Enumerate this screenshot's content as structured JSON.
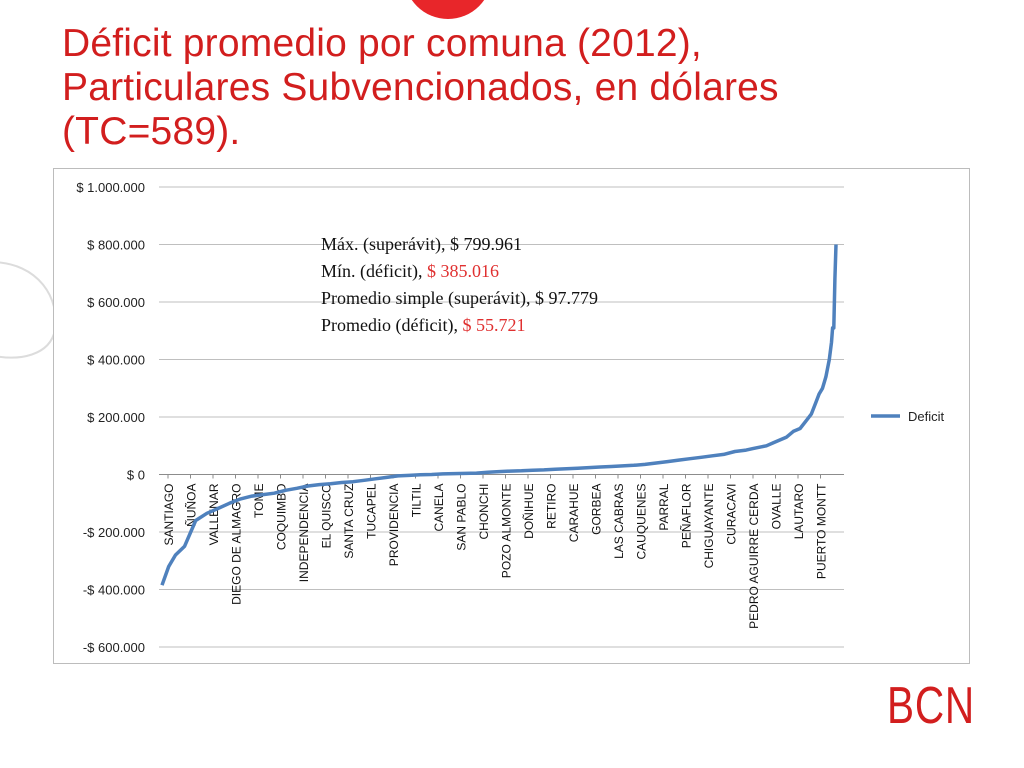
{
  "title_lines": [
    "Déficit promedio por comuna (2012),",
    "Particulares Subvencionados, en dólares",
    "(TC=589)."
  ],
  "logo_text": "BCN",
  "colors": {
    "title": "#d21e1e",
    "line": "#4f81bd",
    "annotation_red": "#e03030",
    "grid": "#bfbfbf"
  },
  "annotations": [
    {
      "label": "Máx. (superávit), ",
      "value": "$ 799.961",
      "value_color": "normal"
    },
    {
      "label": "Mín. (déficit), ",
      "value": "$ 385.016",
      "value_color": "red"
    },
    {
      "label": "Promedio simple (superávit), ",
      "value": "$ 97.779",
      "value_color": "normal"
    },
    {
      "label": "Promedio (déficit), ",
      "value": "$ 55.721",
      "value_color": "red"
    }
  ],
  "chart_data": {
    "type": "line",
    "ylim": [
      -600000,
      1000000
    ],
    "yticks": [
      {
        "value": 1000000,
        "label": "$ 1.000.000"
      },
      {
        "value": 800000,
        "label": "$ 800.000"
      },
      {
        "value": 600000,
        "label": "$ 600.000"
      },
      {
        "value": 400000,
        "label": "$ 400.000"
      },
      {
        "value": 200000,
        "label": "$ 200.000"
      },
      {
        "value": 0,
        "label": "$ 0"
      },
      {
        "value": -200000,
        "label": "-$ 200.000"
      },
      {
        "value": -400000,
        "label": "-$ 400.000"
      },
      {
        "value": -600000,
        "label": "-$ 600.000"
      }
    ],
    "grid": true,
    "legend": {
      "position": "right",
      "entries": [
        "Deficit"
      ]
    },
    "category_labels": [
      "SANTIAGO",
      "ÑUÑOA",
      "VALLENAR",
      "DIEGO DE ALMAGRO",
      "TOME",
      "COQUIMBO",
      "INDEPENDENCIA",
      "EL QUISCO",
      "SANTA CRUZ",
      "TUCAPEL",
      "PROVIDENCIA",
      "TILTIL",
      "CANELA",
      "SAN PABLO",
      "CHONCHI",
      "POZO ALMONTE",
      "DOÑIHUE",
      "RETIRO",
      "CARAHUE",
      "GORBEA",
      "LAS CABRAS",
      "CAUQUENES",
      "PARRAL",
      "PEÑAFLOR",
      "CHIGUAYANTE",
      "CURACAVI",
      "PEDRO AGUIRRE CERDA",
      "OVALLE",
      "LAUTARO",
      "PUERTO MONTT"
    ],
    "series": [
      {
        "name": "Deficit",
        "color": "#4f81bd",
        "x": [
          0,
          0.3,
          0.6,
          1,
          1.5,
          2,
          2.5,
          3,
          3.5,
          4,
          4.5,
          5,
          5.5,
          6,
          6.5,
          7,
          7.5,
          8,
          8.5,
          9,
          9.5,
          10,
          10.5,
          11,
          11.5,
          12,
          12.5,
          13,
          13.5,
          14,
          14.5,
          15,
          15.5,
          16,
          16.5,
          17,
          17.5,
          18,
          18.5,
          19,
          19.5,
          20,
          20.5,
          21,
          21.5,
          22,
          22.5,
          23,
          23.5,
          24,
          24.5,
          25,
          25.5,
          26,
          26.3,
          26.6,
          26.9,
          27.2,
          27.5,
          27.8,
          28.1,
          28.4,
          28.7,
          28.9,
          29.1,
          29.25,
          29.4,
          29.55,
          29.7,
          29.8
        ],
        "y": [
          -385016,
          -320000,
          -280000,
          -250000,
          -160000,
          -135000,
          -118000,
          -100000,
          -85000,
          -75000,
          -70000,
          -65000,
          -55000,
          -48000,
          -40000,
          -35000,
          -32000,
          -28000,
          -25000,
          -20000,
          -15000,
          -10000,
          -5000,
          -3000,
          -1000,
          0,
          2000,
          3000,
          4000,
          5000,
          8000,
          10000,
          12000,
          13000,
          15000,
          16000,
          18000,
          20000,
          22000,
          24000,
          26000,
          28000,
          30000,
          32000,
          35000,
          40000,
          45000,
          50000,
          55000,
          60000,
          65000,
          70000,
          80000,
          85000,
          90000,
          95000,
          100000,
          110000,
          120000,
          130000,
          150000,
          160000,
          190000,
          210000,
          250000,
          280000,
          300000,
          340000,
          400000,
          460000
        ]
      }
    ],
    "series_tail": {
      "x": [
        29.85,
        29.9,
        29.95,
        30
      ],
      "y": [
        510000,
        510000,
        680000,
        799961
      ]
    }
  }
}
